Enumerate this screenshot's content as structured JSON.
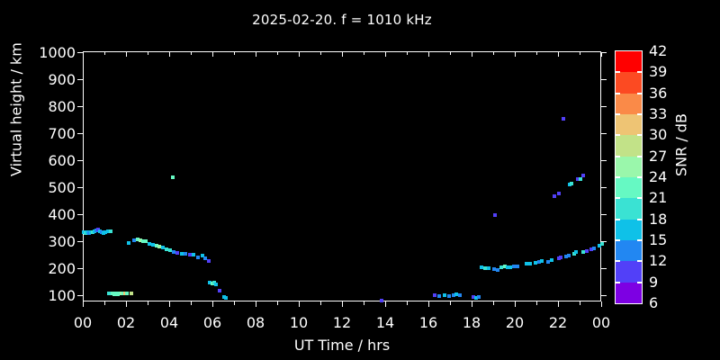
{
  "title": "2025-02-20. f = 1010 kHz",
  "chart_data": {
    "type": "scatter",
    "title": "2025-02-20. f = 1010 kHz",
    "xlabel": "UT Time / hrs",
    "ylabel": "Virtual height / km",
    "xlim": [
      0,
      24
    ],
    "ylim": [
      78,
      1004
    ],
    "grid": false,
    "background": "#000000",
    "frame_color": "#ffffff",
    "x_major_tick_hours": [
      0,
      2,
      4,
      6,
      8,
      10,
      12,
      14,
      16,
      18,
      20,
      22,
      24
    ],
    "x_tick_labels": [
      "00",
      "02",
      "04",
      "06",
      "08",
      "10",
      "12",
      "14",
      "16",
      "18",
      "20",
      "22",
      "00"
    ],
    "x_minor_tick_hours": [
      1,
      3,
      5,
      7,
      9,
      11,
      13,
      15,
      17,
      19,
      21,
      23
    ],
    "y_major_ticks_km": [
      100,
      200,
      300,
      400,
      500,
      600,
      700,
      800,
      900,
      1000
    ],
    "y_tick_labels": [
      "100",
      "200",
      "300",
      "400",
      "500",
      "600",
      "700",
      "800",
      "900",
      "1000"
    ],
    "colorbar": {
      "label": "SNR / dB",
      "min_db": 6,
      "max_db": 42,
      "step_db": 3,
      "tick_labels": [
        "42",
        "39",
        "36",
        "33",
        "30",
        "27",
        "24",
        "21",
        "18",
        "15",
        "12",
        "9",
        "6"
      ],
      "segment_colors_bottom_to_top": [
        "#7d00e3",
        "#5240f8",
        "#2287f2",
        "#0fc1e8",
        "#3ae2d3",
        "#66f9c3",
        "#9af7ab",
        "#c2e288",
        "#eec474",
        "#fa8a48",
        "#fc4a22",
        "#ff0000"
      ]
    },
    "points_format": [
      "ut_hr",
      "virtual_height_km",
      "snr_band_index_from_6dB"
    ],
    "points": [
      [
        0.02,
        338,
        3
      ],
      [
        0.1,
        335,
        4
      ],
      [
        0.17,
        338,
        3
      ],
      [
        0.25,
        336,
        2
      ],
      [
        0.33,
        339,
        3
      ],
      [
        0.42,
        337,
        4
      ],
      [
        0.5,
        340,
        3
      ],
      [
        0.58,
        343,
        2
      ],
      [
        0.67,
        347,
        1
      ],
      [
        0.75,
        342,
        3
      ],
      [
        0.83,
        338,
        2
      ],
      [
        0.92,
        336,
        3
      ],
      [
        1.0,
        337,
        3
      ],
      [
        1.13,
        341,
        3
      ],
      [
        1.25,
        340,
        4
      ],
      [
        1.17,
        111,
        4
      ],
      [
        1.25,
        110,
        4
      ],
      [
        1.33,
        110,
        5
      ],
      [
        1.42,
        109,
        5
      ],
      [
        1.5,
        110,
        5
      ],
      [
        1.58,
        109,
        5
      ],
      [
        1.67,
        110,
        5
      ],
      [
        1.75,
        110,
        6
      ],
      [
        1.83,
        110,
        5
      ],
      [
        1.92,
        110,
        8
      ],
      [
        2.0,
        111,
        5
      ],
      [
        2.21,
        110,
        7
      ],
      [
        2.08,
        298,
        3
      ],
      [
        2.33,
        307,
        2
      ],
      [
        2.5,
        311,
        5
      ],
      [
        2.63,
        307,
        6
      ],
      [
        2.75,
        306,
        5
      ],
      [
        2.88,
        303,
        5
      ],
      [
        3.04,
        295,
        3
      ],
      [
        3.21,
        291,
        3
      ],
      [
        3.38,
        288,
        5
      ],
      [
        3.5,
        284,
        6
      ],
      [
        3.67,
        280,
        3
      ],
      [
        3.83,
        275,
        4
      ],
      [
        4.0,
        272,
        4
      ],
      [
        4.17,
        265,
        2
      ],
      [
        4.33,
        262,
        1
      ],
      [
        4.54,
        258,
        3
      ],
      [
        4.71,
        259,
        2
      ],
      [
        4.92,
        256,
        1
      ],
      [
        5.08,
        254,
        3
      ],
      [
        5.29,
        245,
        2
      ],
      [
        5.5,
        250,
        3
      ],
      [
        5.63,
        240,
        2
      ],
      [
        5.79,
        230,
        1
      ],
      [
        4.13,
        540,
        5
      ],
      [
        5.83,
        150,
        3
      ],
      [
        5.96,
        148,
        5
      ],
      [
        6.04,
        152,
        4
      ],
      [
        6.13,
        143,
        3
      ],
      [
        6.29,
        121,
        1
      ],
      [
        6.5,
        97,
        3
      ],
      [
        6.58,
        94,
        3
      ],
      [
        13.79,
        85,
        1
      ],
      [
        16.25,
        104,
        1
      ],
      [
        16.46,
        101,
        2
      ],
      [
        16.71,
        104,
        3
      ],
      [
        16.92,
        101,
        2
      ],
      [
        17.13,
        104,
        2
      ],
      [
        17.25,
        107,
        3
      ],
      [
        17.42,
        104,
        2
      ],
      [
        18.04,
        98,
        1
      ],
      [
        18.17,
        95,
        3
      ],
      [
        18.29,
        97,
        2
      ],
      [
        19.04,
        401,
        1
      ],
      [
        18.42,
        207,
        3
      ],
      [
        18.58,
        205,
        4
      ],
      [
        18.75,
        204,
        3
      ],
      [
        19.0,
        200,
        2
      ],
      [
        19.17,
        198,
        2
      ],
      [
        19.33,
        208,
        4
      ],
      [
        19.5,
        210,
        5
      ],
      [
        19.63,
        208,
        3
      ],
      [
        19.75,
        209,
        3
      ],
      [
        19.92,
        212,
        2
      ],
      [
        20.08,
        211,
        2
      ],
      [
        20.5,
        220,
        3
      ],
      [
        20.67,
        222,
        3
      ],
      [
        20.92,
        224,
        3
      ],
      [
        21.08,
        227,
        2
      ],
      [
        21.21,
        230,
        3
      ],
      [
        21.5,
        228,
        2
      ],
      [
        21.67,
        233,
        3
      ],
      [
        22.0,
        240,
        1
      ],
      [
        22.08,
        243,
        1
      ],
      [
        22.33,
        247,
        2
      ],
      [
        22.46,
        250,
        2
      ],
      [
        22.71,
        257,
        4
      ],
      [
        22.79,
        263,
        3
      ],
      [
        23.13,
        266,
        4
      ],
      [
        23.29,
        269,
        1
      ],
      [
        23.5,
        274,
        1
      ],
      [
        23.63,
        279,
        2
      ],
      [
        23.88,
        287,
        3
      ],
      [
        23.98,
        293,
        4
      ],
      [
        21.79,
        471,
        1
      ],
      [
        22.0,
        481,
        1
      ],
      [
        22.5,
        514,
        3
      ],
      [
        22.58,
        518,
        4
      ],
      [
        22.88,
        534,
        1
      ],
      [
        23.0,
        534,
        4
      ],
      [
        23.13,
        548,
        1
      ],
      [
        22.21,
        757,
        1
      ]
    ]
  }
}
